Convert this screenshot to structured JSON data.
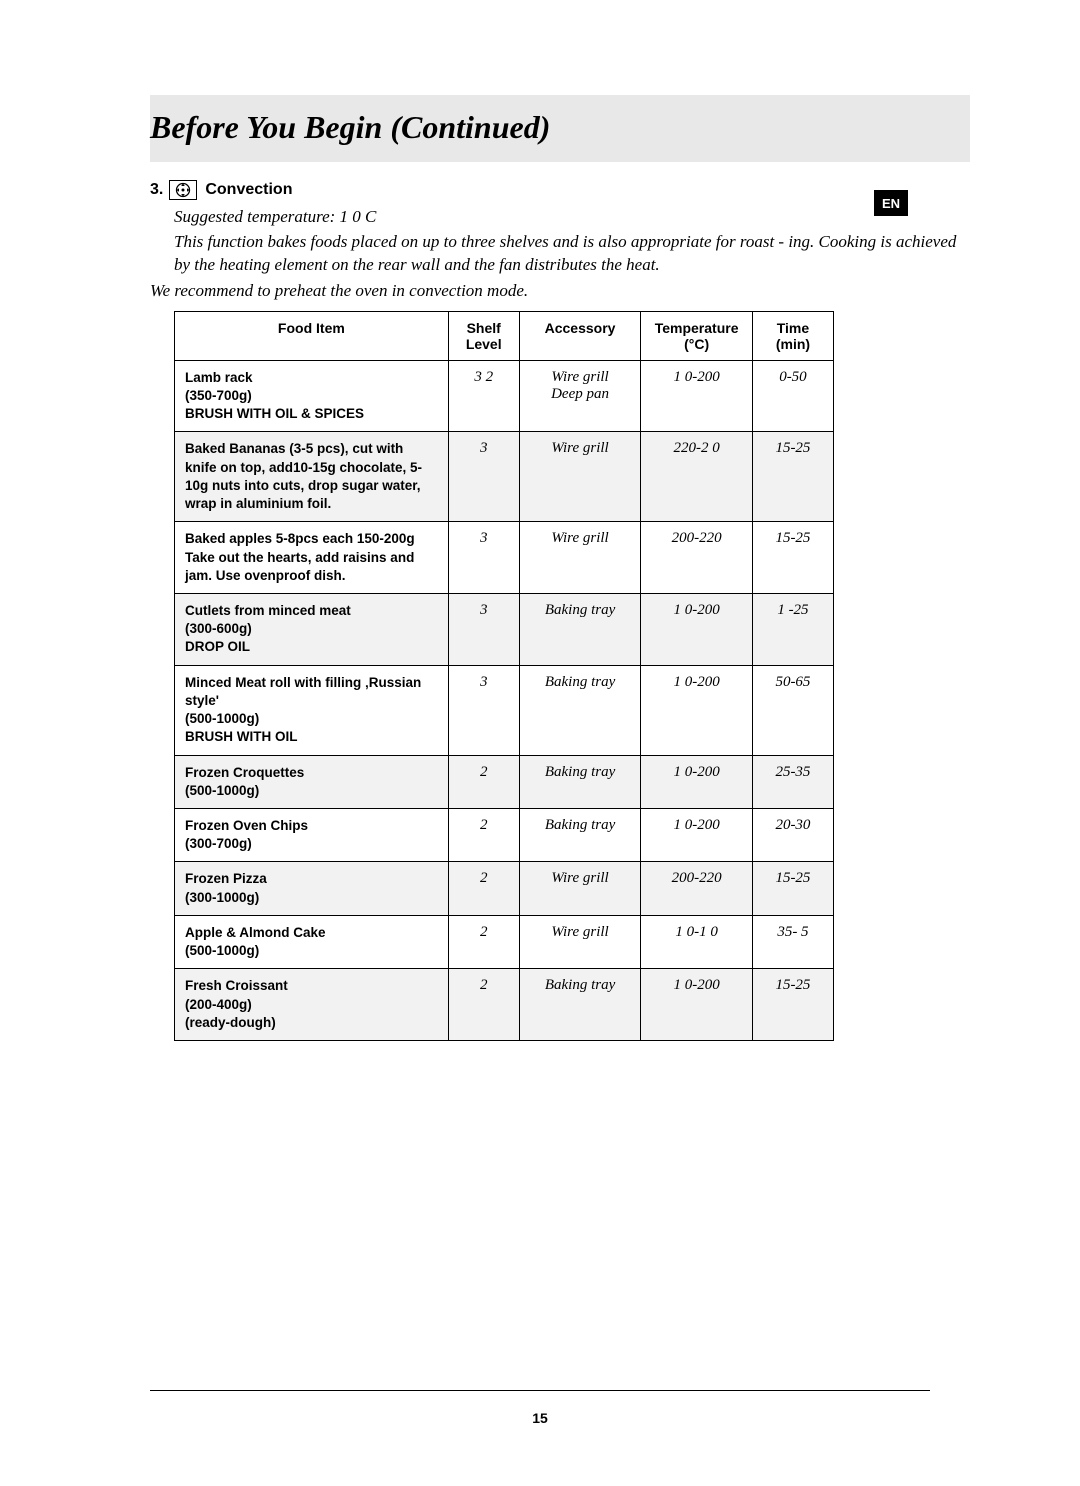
{
  "title": "Before You Begin (Continued)",
  "lang_tab": "EN",
  "section": {
    "number": "3.",
    "label": "Convection",
    "suggested": "Suggested temperature: 1 0 C",
    "desc": "This function bakes foods placed on up to three shelves and is also appropriate for roast - ing. Cooking is achieved by the heating element on the rear wall and the fan distributes the heat.",
    "preheat": "We recommend to preheat the oven in convection mode."
  },
  "table": {
    "headers": {
      "food": "Food Item",
      "shelf": "Shelf Level",
      "accessory": "Accessory",
      "temp": "Temperature (°C)",
      "time": "Time (min)"
    },
    "rows": [
      {
        "food": "Lamb rack\n(350-700g)\nBRUSH WITH OIL & SPICES",
        "shelf": "3 2",
        "accessory": "Wire grill\nDeep pan",
        "temp": "1 0-200",
        "time": "0-50",
        "shaded": false
      },
      {
        "food": "Baked Bananas (3-5 pcs), cut with knife on top, add10-15g chocolate, 5-10g nuts into cuts, drop sugar water, wrap in aluminium foil.",
        "shelf": "3",
        "accessory": "Wire grill",
        "temp": "220-2 0",
        "time": "15-25",
        "shaded": true
      },
      {
        "food": "Baked apples 5-8pcs each 150-200g\nTake out the hearts, add raisins and jam. Use ovenproof dish.",
        "shelf": "3",
        "accessory": "Wire grill",
        "temp": "200-220",
        "time": "15-25",
        "shaded": false
      },
      {
        "food": "Cutlets from minced meat\n(300-600g)\nDROP OIL",
        "shelf": "3",
        "accessory": "Baking tray",
        "temp": "1 0-200",
        "time": "1 -25",
        "shaded": true
      },
      {
        "food": "Minced Meat roll with filling ‚Russian style'\n(500-1000g)\nBRUSH WITH OIL",
        "shelf": "3",
        "accessory": "Baking tray",
        "temp": "1 0-200",
        "time": "50-65",
        "shaded": false
      },
      {
        "food": "Frozen Croquettes\n(500-1000g)",
        "shelf": "2",
        "accessory": "Baking tray",
        "temp": "1 0-200",
        "time": "25-35",
        "shaded": true
      },
      {
        "food": "Frozen Oven Chips\n(300-700g)",
        "shelf": "2",
        "accessory": "Baking tray",
        "temp": "1 0-200",
        "time": "20-30",
        "shaded": false
      },
      {
        "food": "Frozen Pizza\n(300-1000g)",
        "shelf": "2",
        "accessory": "Wire grill",
        "temp": "200-220",
        "time": "15-25",
        "shaded": true
      },
      {
        "food": "Apple & Almond Cake\n(500-1000g)",
        "shelf": "2",
        "accessory": "Wire grill",
        "temp": "1 0-1 0",
        "time": "35- 5",
        "shaded": false
      },
      {
        "food": "Fresh Croissant\n(200-400g)\n(ready-dough)",
        "shelf": "2",
        "accessory": "Baking tray",
        "temp": "1 0-200",
        "time": "15-25",
        "shaded": true
      }
    ]
  },
  "page_number": "15",
  "styles": {
    "title_bg": "#e8e8e8",
    "row_shade": "#f2f2f2"
  }
}
